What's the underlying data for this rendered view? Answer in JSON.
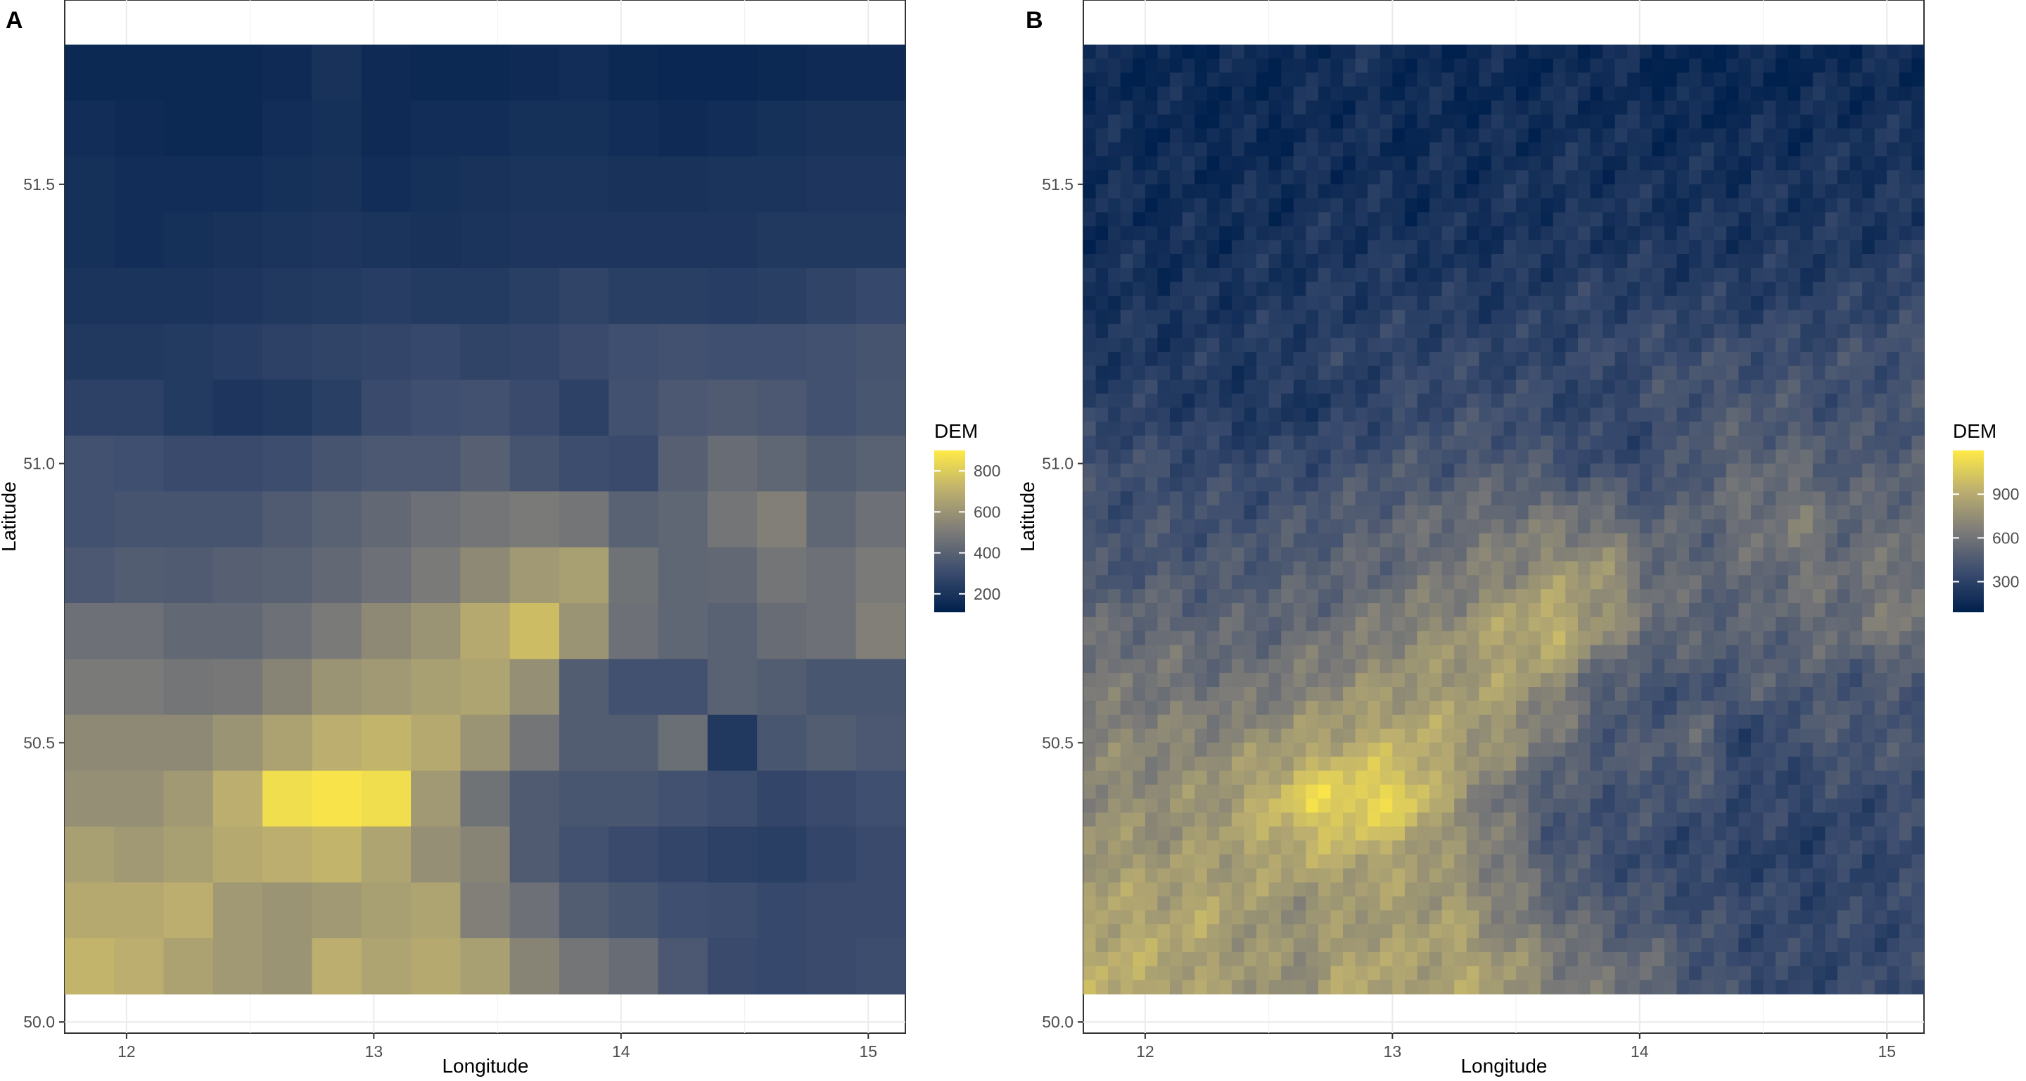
{
  "chart_data": [
    {
      "panel_label": "A",
      "type": "heatmap",
      "title": "",
      "xlabel": "Longitude",
      "ylabel": "Latitude",
      "xlim": [
        11.75,
        15.15
      ],
      "ylim": [
        49.98,
        51.83
      ],
      "x_ticks": [
        12,
        13,
        14,
        15
      ],
      "y_ticks": [
        50.0,
        50.5,
        51.0,
        51.5
      ],
      "x_tick_labels": [
        "12",
        "13",
        "14",
        "15"
      ],
      "y_tick_labels": [
        "50.0",
        "50.5",
        "51.0",
        "51.5"
      ],
      "data_extent": {
        "lon": [
          11.75,
          15.15
        ],
        "lat": [
          50.05,
          51.75
        ]
      },
      "grid": true,
      "legend": {
        "title": "DEM",
        "placement": "right",
        "ticks": [
          200,
          400,
          600,
          800
        ],
        "tick_labels": [
          "200",
          "400",
          "600",
          "800"
        ],
        "range": [
          110,
          900
        ]
      },
      "grid_resolution": "coarse",
      "rows": 17,
      "cols": 17,
      "values": [
        [
          150,
          150,
          150,
          150,
          160,
          190,
          160,
          150,
          150,
          160,
          170,
          150,
          140,
          140,
          150,
          160,
          160
        ],
        [
          170,
          160,
          150,
          150,
          170,
          180,
          160,
          170,
          170,
          180,
          180,
          170,
          160,
          170,
          180,
          190,
          190
        ],
        [
          180,
          170,
          170,
          170,
          180,
          190,
          170,
          180,
          190,
          200,
          200,
          190,
          190,
          200,
          200,
          210,
          210
        ],
        [
          180,
          170,
          180,
          190,
          200,
          210,
          200,
          190,
          200,
          210,
          210,
          210,
          210,
          210,
          220,
          220,
          220
        ],
        [
          200,
          200,
          200,
          210,
          220,
          230,
          240,
          230,
          230,
          250,
          270,
          250,
          250,
          240,
          250,
          270,
          290
        ],
        [
          220,
          220,
          230,
          240,
          260,
          270,
          280,
          290,
          270,
          280,
          300,
          320,
          330,
          320,
          320,
          330,
          340
        ],
        [
          260,
          260,
          230,
          210,
          220,
          250,
          300,
          320,
          330,
          300,
          260,
          330,
          360,
          370,
          360,
          330,
          350
        ],
        [
          330,
          320,
          300,
          300,
          310,
          340,
          360,
          360,
          390,
          340,
          310,
          300,
          390,
          440,
          420,
          380,
          400
        ],
        [
          330,
          340,
          340,
          340,
          370,
          400,
          430,
          460,
          480,
          500,
          480,
          400,
          420,
          480,
          520,
          420,
          460
        ],
        [
          360,
          380,
          370,
          390,
          400,
          430,
          460,
          500,
          560,
          620,
          640,
          470,
          420,
          430,
          480,
          460,
          500
        ],
        [
          460,
          460,
          430,
          430,
          460,
          500,
          560,
          600,
          680,
          750,
          600,
          460,
          420,
          400,
          440,
          460,
          520
        ],
        [
          500,
          500,
          480,
          490,
          540,
          600,
          620,
          640,
          660,
          580,
          380,
          330,
          330,
          400,
          380,
          350,
          350
        ],
        [
          560,
          560,
          560,
          600,
          650,
          700,
          720,
          680,
          600,
          480,
          380,
          380,
          450,
          220,
          350,
          380,
          360
        ],
        [
          580,
          580,
          620,
          700,
          860,
          880,
          860,
          620,
          470,
          370,
          350,
          350,
          330,
          310,
          280,
          300,
          320
        ],
        [
          640,
          620,
          640,
          680,
          700,
          720,
          660,
          580,
          540,
          370,
          330,
          300,
          280,
          260,
          250,
          280,
          300
        ],
        [
          680,
          680,
          700,
          620,
          600,
          620,
          640,
          660,
          520,
          460,
          380,
          350,
          320,
          310,
          290,
          300,
          300
        ],
        [
          720,
          700,
          650,
          620,
          600,
          700,
          660,
          680,
          640,
          540,
          480,
          440,
          360,
          300,
          290,
          300,
          310
        ]
      ]
    },
    {
      "panel_label": "B",
      "type": "heatmap",
      "title": "",
      "xlabel": "Longitude",
      "ylabel": "Latitude",
      "xlim": [
        11.75,
        15.15
      ],
      "ylim": [
        49.98,
        51.83
      ],
      "x_ticks": [
        12,
        13,
        14,
        15
      ],
      "y_ticks": [
        50.0,
        50.5,
        51.0,
        51.5
      ],
      "x_tick_labels": [
        "12",
        "13",
        "14",
        "15"
      ],
      "y_tick_labels": [
        "50.0",
        "50.5",
        "51.0",
        "51.5"
      ],
      "data_extent": {
        "lon": [
          11.75,
          15.15
        ],
        "lat": [
          50.05,
          51.75
        ]
      },
      "grid": true,
      "legend": {
        "title": "DEM",
        "placement": "right",
        "ticks": [
          300,
          600,
          900
        ],
        "tick_labels": [
          "300",
          "600",
          "900"
        ],
        "range": [
          90,
          1200
        ]
      },
      "grid_resolution": "fine",
      "note": "Same elevation field as panel A at finer resolution; rendered by interpolating the coarse grid with added fine-scale texture."
    }
  ]
}
